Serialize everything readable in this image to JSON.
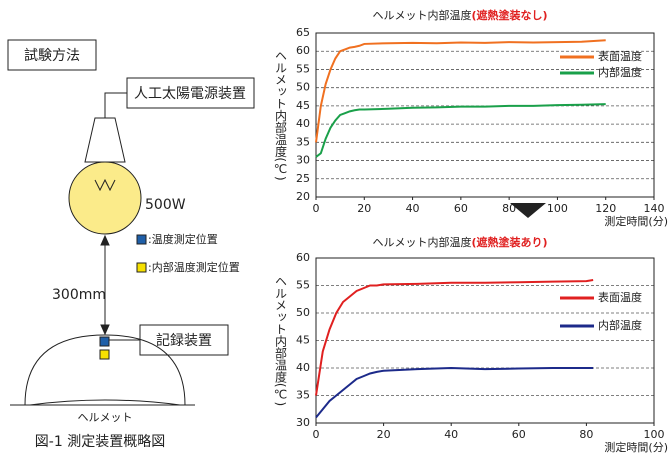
{
  "diagram": {
    "method_title": "試験方法",
    "light_source": "人工太陽電源装置",
    "power": "500W",
    "legend_surface": ":温度測定位置",
    "legend_internal": ":内部温度測定位置",
    "distance": "300mm",
    "recorder": "記録装置",
    "helmet": "ヘルメット",
    "caption": "図-1 測定装置概略図"
  },
  "chart_data": [
    {
      "type": "line",
      "title": "ヘルメット内部温度",
      "title_highlight": "(遮熱塗装なし)",
      "y_label": "ヘルメット内部温度(℃)",
      "x_label": "測定時間(分)",
      "x": [
        0,
        2,
        4,
        6,
        8,
        10,
        12,
        14,
        16,
        18,
        20,
        30,
        40,
        50,
        60,
        70,
        80,
        90,
        100,
        110,
        120
      ],
      "series": [
        {
          "name": "表面温度",
          "color": "#f07020",
          "values": [
            35,
            45,
            51,
            55,
            58,
            60,
            60.5,
            61,
            61.2,
            61.5,
            62,
            62.2,
            62.3,
            62.2,
            62.4,
            62.3,
            62.5,
            62.4,
            62.5,
            62.6,
            63
          ]
        },
        {
          "name": "内部温度",
          "color": "#1aa04a",
          "values": [
            31,
            32,
            36,
            39,
            41,
            42.5,
            43,
            43.5,
            43.8,
            44,
            44,
            44.2,
            44.5,
            44.6,
            44.8,
            44.8,
            45,
            45,
            45.2,
            45.3,
            45.5
          ]
        }
      ],
      "xlim": [
        0,
        140
      ],
      "xticks": [
        0,
        20,
        40,
        60,
        80,
        100,
        120,
        140
      ],
      "ylim": [
        20,
        65
      ],
      "yticks": [
        20,
        25,
        30,
        35,
        40,
        45,
        50,
        55,
        60,
        65
      ],
      "grid": true
    },
    {
      "type": "line",
      "title": "ヘルメット内部温度",
      "title_highlight": "(遮熱塗装あり)",
      "y_label": "ヘルメット内部温度(℃)",
      "x_label": "測定時間(分)",
      "x": [
        0,
        2,
        4,
        6,
        8,
        10,
        12,
        14,
        16,
        18,
        20,
        30,
        40,
        50,
        60,
        70,
        80,
        82
      ],
      "series": [
        {
          "name": "表面温度",
          "color": "#e02020",
          "values": [
            35,
            43,
            47,
            50,
            52,
            53,
            54,
            54.5,
            55,
            55,
            55.2,
            55.3,
            55.5,
            55.5,
            55.6,
            55.7,
            55.8,
            56
          ]
        },
        {
          "name": "内部温度",
          "color": "#1c2a8a",
          "values": [
            31,
            32.5,
            34,
            35,
            36,
            37,
            38,
            38.5,
            39,
            39.3,
            39.5,
            39.8,
            40,
            39.8,
            39.9,
            40,
            40,
            40
          ]
        }
      ],
      "xlim": [
        0,
        100
      ],
      "xticks": [
        0,
        20,
        40,
        60,
        80,
        100
      ],
      "ylim": [
        30,
        60
      ],
      "yticks": [
        30,
        35,
        40,
        45,
        50,
        55,
        60
      ],
      "grid": true
    }
  ]
}
